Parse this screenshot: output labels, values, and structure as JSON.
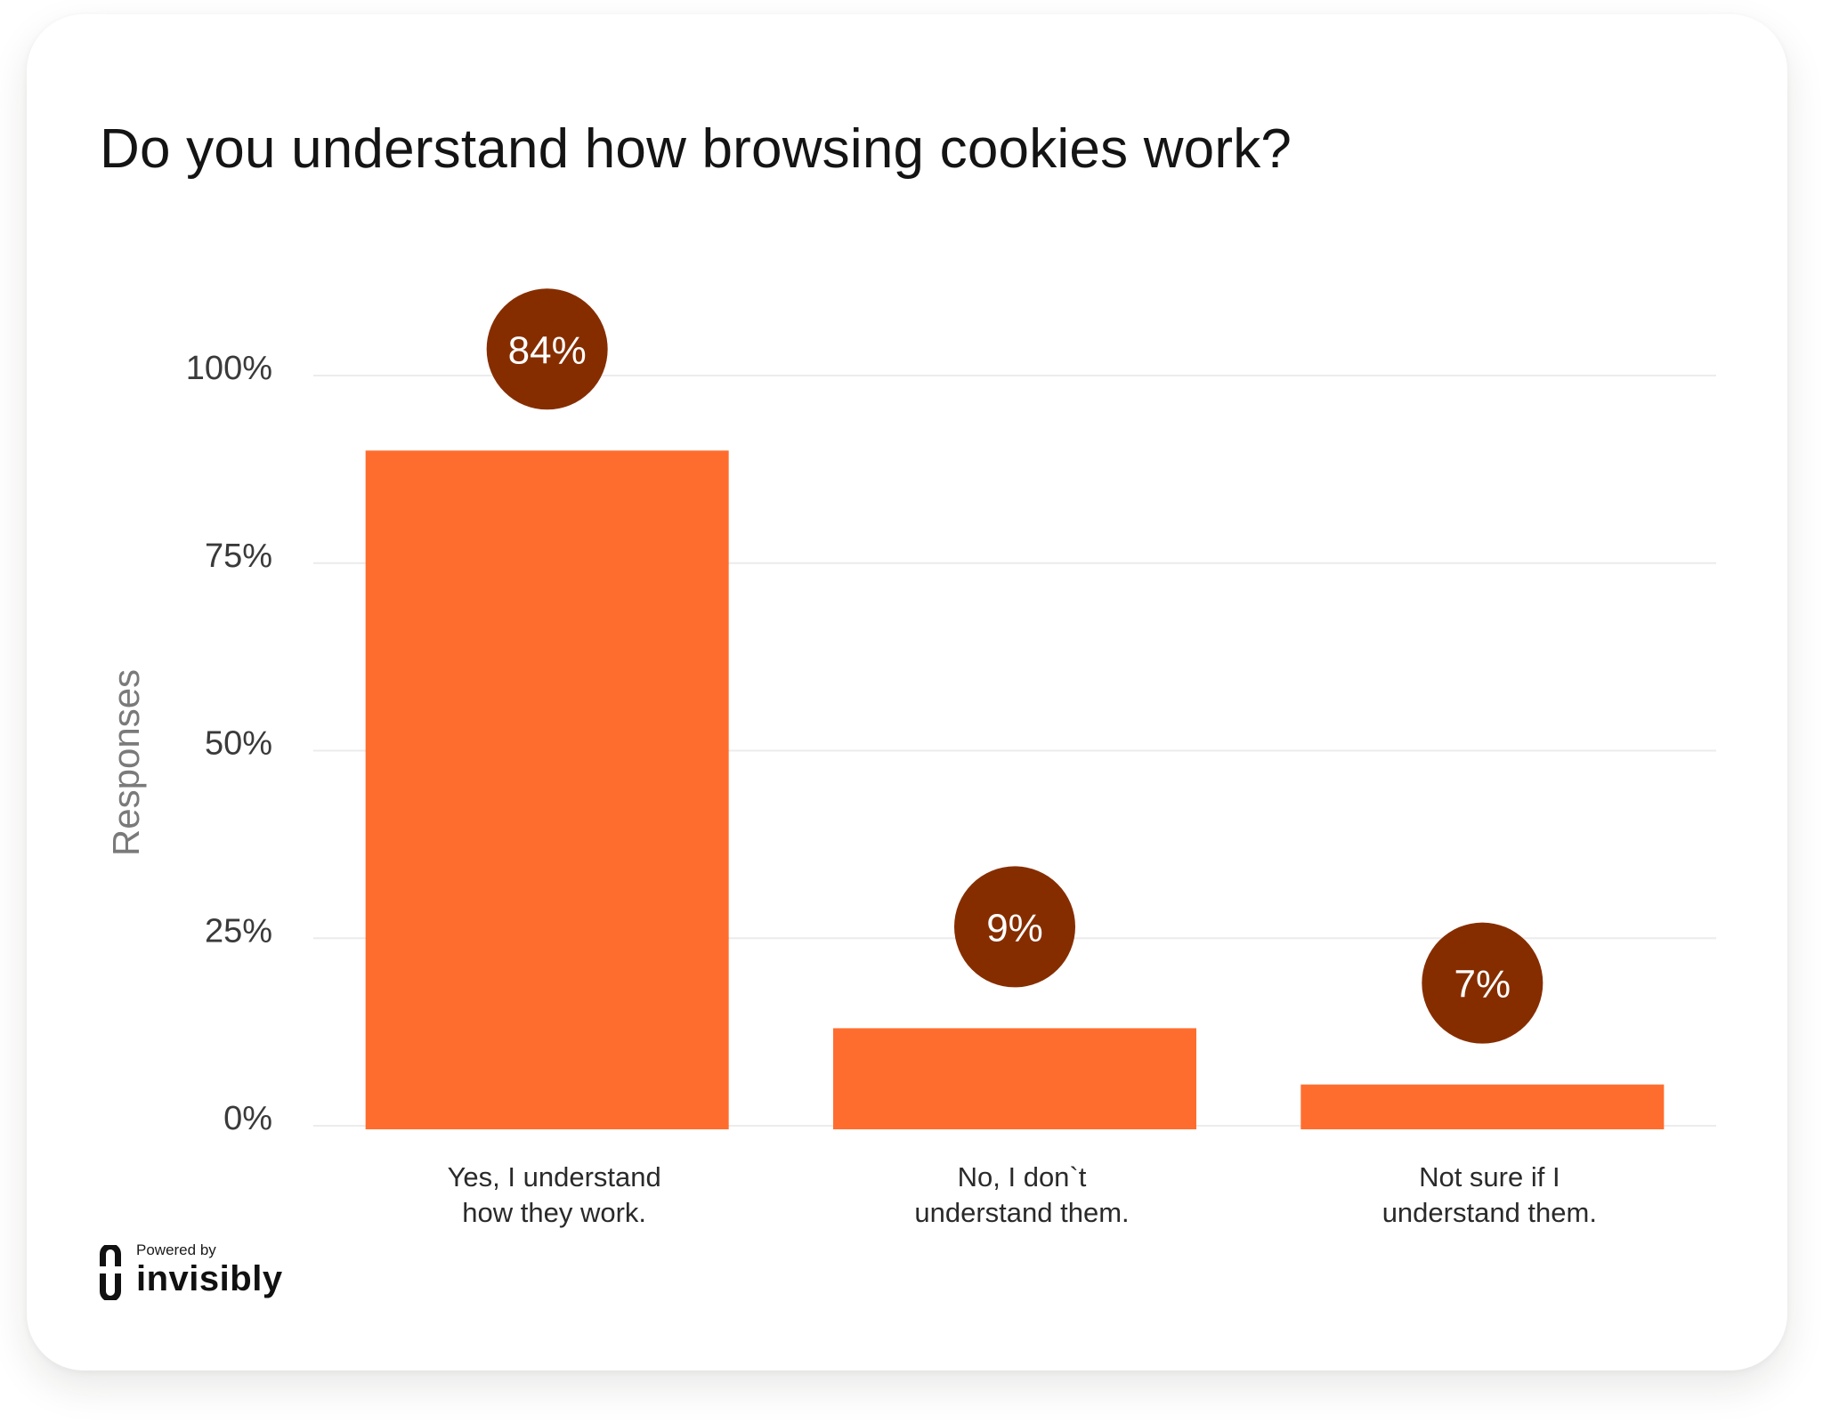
{
  "title": "Do you understand how browsing cookies work?",
  "chart_data": {
    "type": "bar",
    "title": "Do you understand how browsing cookies work?",
    "ylabel": "Responses",
    "xlabel": "",
    "ylim": [
      0,
      100
    ],
    "y_ticks": [
      "0%",
      "25%",
      "50%",
      "75%",
      "100%"
    ],
    "y_tick_values": [
      0,
      25,
      50,
      75,
      100
    ],
    "grid": true,
    "categories": [
      [
        "Yes, I understand",
        "how they work."
      ],
      [
        "No, I don`t",
        "understand them."
      ],
      [
        "Not sure if I",
        "understand them."
      ]
    ],
    "values": [
      84,
      9,
      7
    ],
    "bar_lengths": [
      90,
      13,
      5.5
    ],
    "data_labels": [
      "84%",
      "9%",
      "7%"
    ],
    "colors": {
      "bar": "#FF6D2E",
      "label_circle": "#862D00",
      "grid": "#ECECEC"
    }
  },
  "footer": {
    "powered_by": "Powered by",
    "brand": "invisibly",
    "logo_icon": "invisibly-logo-icon"
  }
}
